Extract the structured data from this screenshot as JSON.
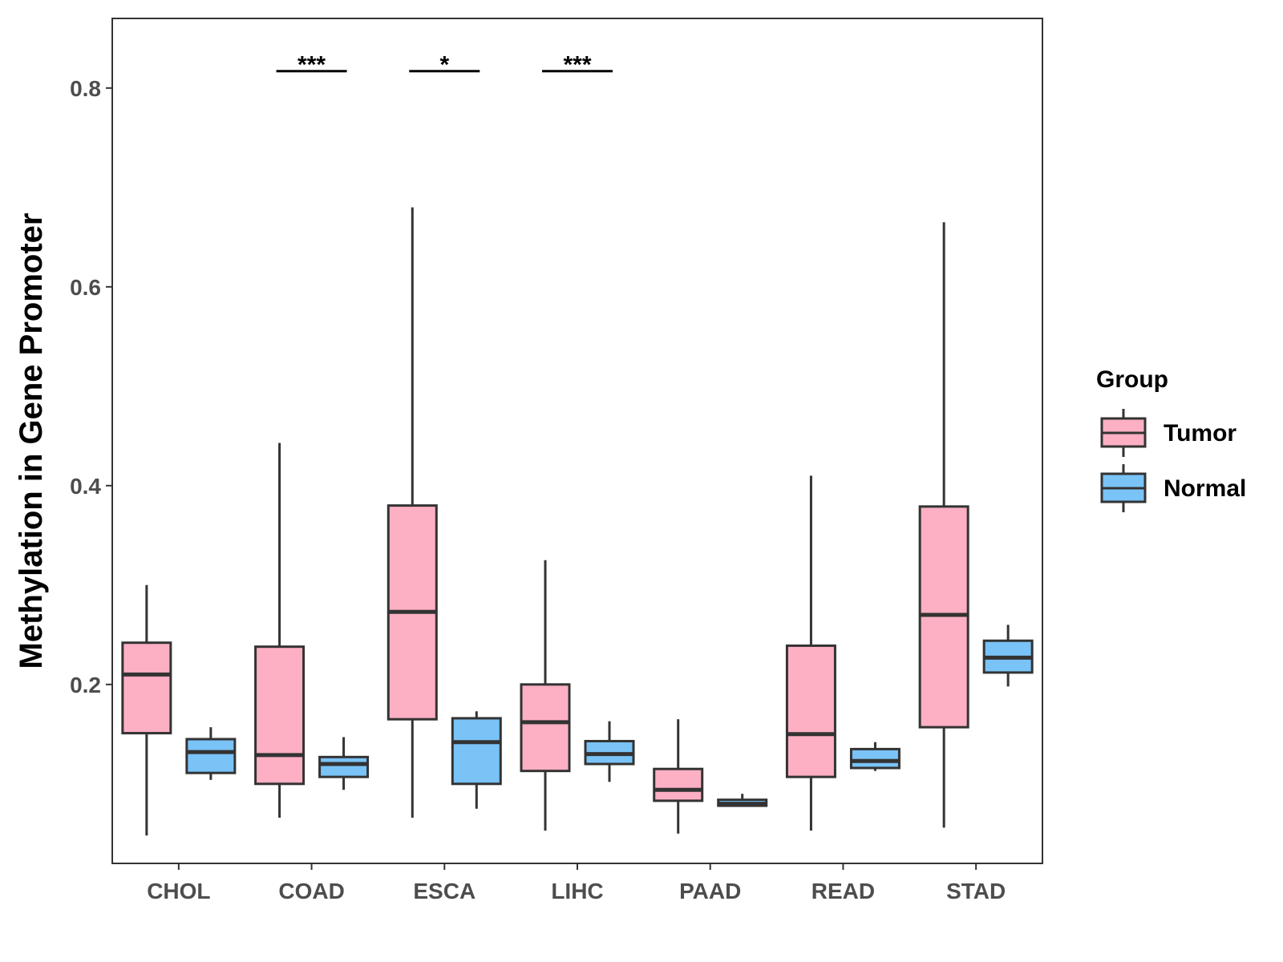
{
  "chart_data": {
    "type": "boxplot",
    "title": "",
    "xlabel": "",
    "ylabel": "Methylation in Gene Promoter",
    "ylim": [
      0.02,
      0.87
    ],
    "yticks": [
      0.2,
      0.4,
      0.6,
      0.8
    ],
    "ytick_labels": [
      "0.2",
      "0.4",
      "0.6",
      "0.8"
    ],
    "categories": [
      "CHOL",
      "COAD",
      "ESCA",
      "LIHC",
      "PAAD",
      "READ",
      "STAD"
    ],
    "legend": {
      "title": "Group",
      "position": "right",
      "entries": [
        {
          "label": "Tumor",
          "color": "#FDB0C3"
        },
        {
          "label": "Normal",
          "color": "#7AC3F7"
        }
      ]
    },
    "series": [
      {
        "name": "Tumor",
        "color": "#FDB0C3",
        "boxes": [
          {
            "whisker_low": 0.048,
            "q1": 0.151,
            "median": 0.21,
            "q3": 0.242,
            "whisker_high": 0.3
          },
          {
            "whisker_low": 0.066,
            "q1": 0.1,
            "median": 0.129,
            "q3": 0.238,
            "whisker_high": 0.443
          },
          {
            "whisker_low": 0.066,
            "q1": 0.165,
            "median": 0.273,
            "q3": 0.38,
            "whisker_high": 0.68
          },
          {
            "whisker_low": 0.053,
            "q1": 0.113,
            "median": 0.162,
            "q3": 0.2,
            "whisker_high": 0.325
          },
          {
            "whisker_low": 0.05,
            "q1": 0.083,
            "median": 0.094,
            "q3": 0.115,
            "whisker_high": 0.165
          },
          {
            "whisker_low": 0.053,
            "q1": 0.107,
            "median": 0.15,
            "q3": 0.239,
            "whisker_high": 0.41
          },
          {
            "whisker_low": 0.056,
            "q1": 0.157,
            "median": 0.27,
            "q3": 0.379,
            "whisker_high": 0.665
          }
        ]
      },
      {
        "name": "Normal",
        "color": "#7AC3F7",
        "boxes": [
          {
            "whisker_low": 0.104,
            "q1": 0.111,
            "median": 0.132,
            "q3": 0.145,
            "whisker_high": 0.157
          },
          {
            "whisker_low": 0.094,
            "q1": 0.107,
            "median": 0.12,
            "q3": 0.127,
            "whisker_high": 0.147
          },
          {
            "whisker_low": 0.075,
            "q1": 0.1,
            "median": 0.142,
            "q3": 0.166,
            "whisker_high": 0.173
          },
          {
            "whisker_low": 0.102,
            "q1": 0.12,
            "median": 0.13,
            "q3": 0.143,
            "whisker_high": 0.163
          },
          {
            "whisker_low": 0.077,
            "q1": 0.078,
            "median": 0.08,
            "q3": 0.084,
            "whisker_high": 0.09
          },
          {
            "whisker_low": 0.113,
            "q1": 0.116,
            "median": 0.123,
            "q3": 0.135,
            "whisker_high": 0.142
          },
          {
            "whisker_low": 0.198,
            "q1": 0.212,
            "median": 0.227,
            "q3": 0.244,
            "whisker_high": 0.26
          }
        ]
      }
    ],
    "significance": [
      {
        "category": "COAD",
        "label": "***",
        "y": 0.817
      },
      {
        "category": "ESCA",
        "label": "*",
        "y": 0.817
      },
      {
        "category": "LIHC",
        "label": "***",
        "y": 0.817
      }
    ]
  }
}
